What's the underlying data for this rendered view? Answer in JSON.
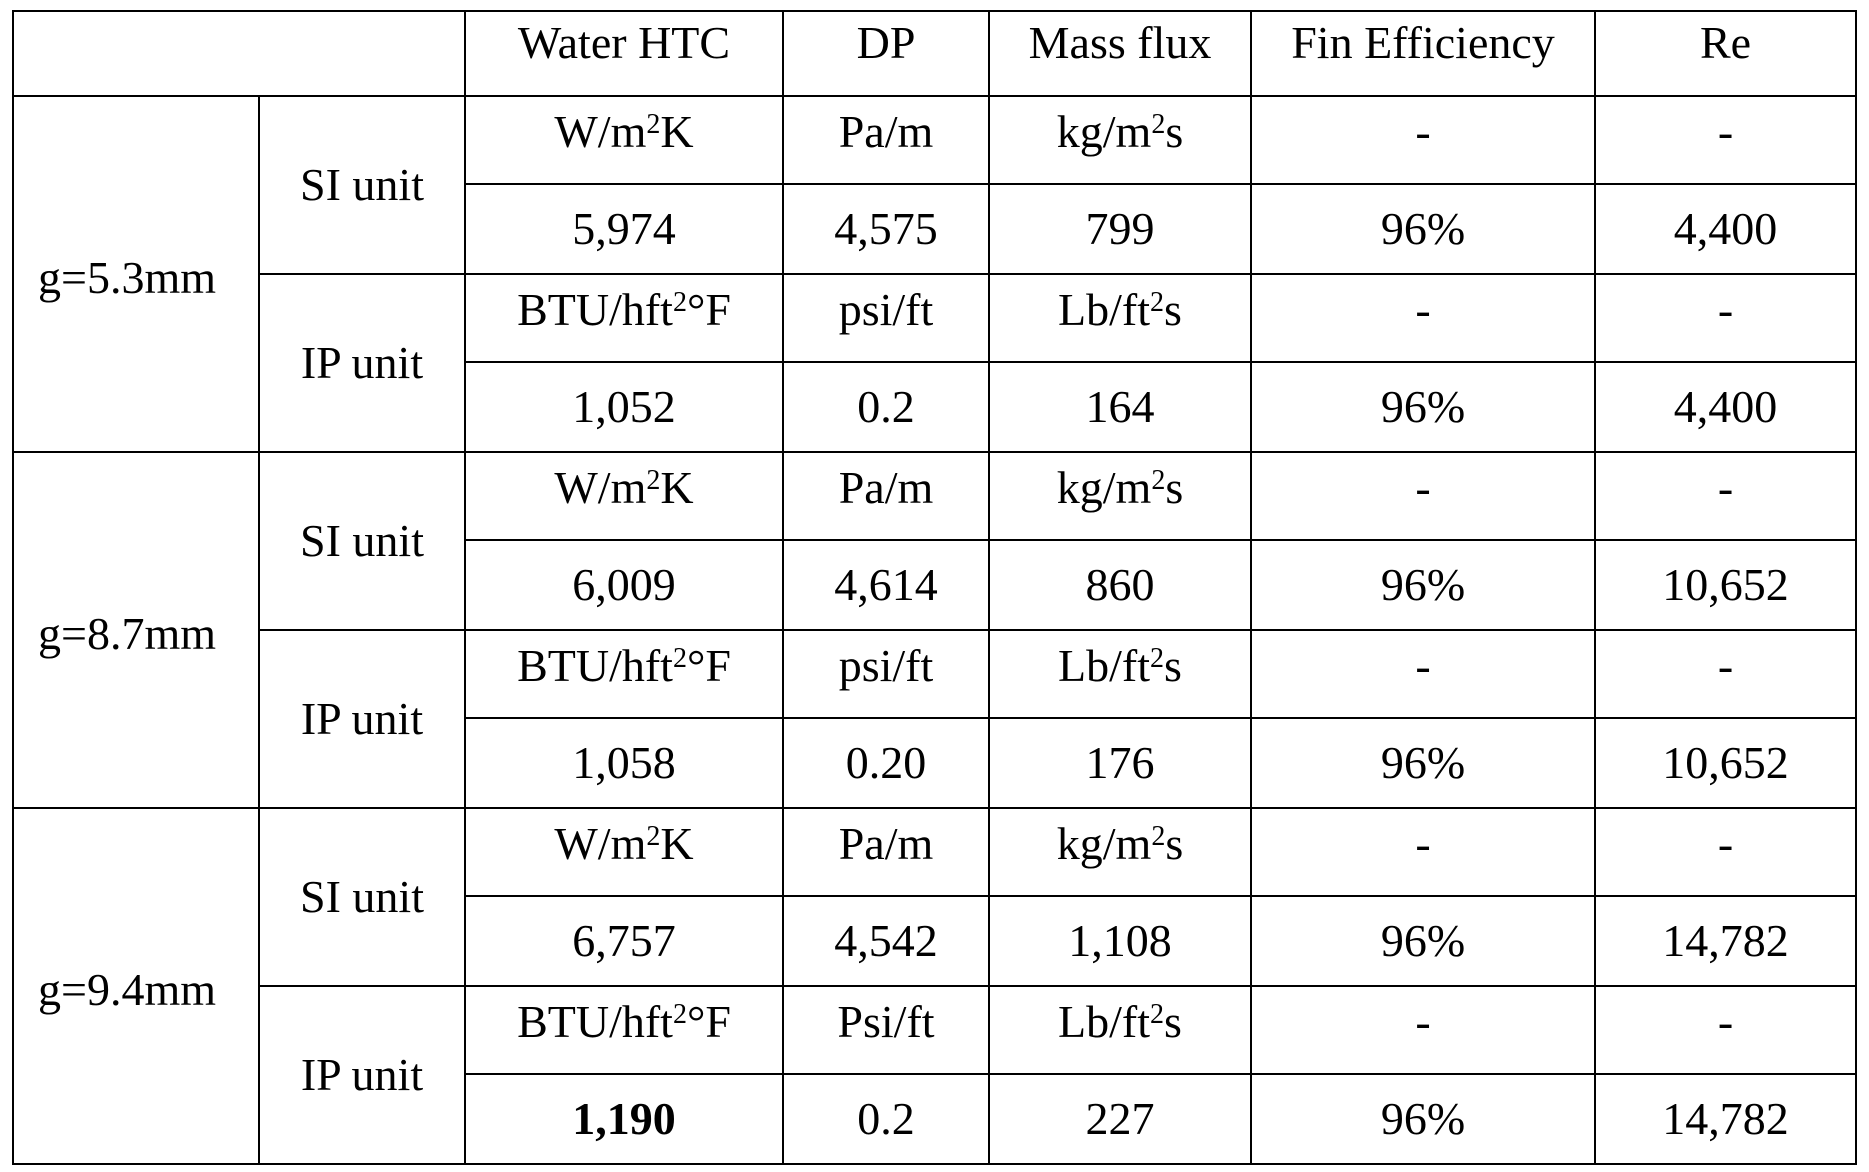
{
  "header": {
    "corner": "",
    "columns": [
      "Water HTC",
      "DP",
      "Mass flux",
      "Fin Efficiency",
      "Re"
    ]
  },
  "groups": [
    {
      "gap": "g=5.3mm",
      "si": {
        "label": "SI unit",
        "units": {
          "htc_pre": "W/m",
          "htc_sup": "2",
          "htc_post": "K",
          "dp": "Pa/m",
          "mf_pre": "kg/m",
          "mf_sup": "2",
          "mf_post": "s",
          "fin": "-",
          "re": "-"
        },
        "values": {
          "htc": "5,974",
          "dp": "4,575",
          "mf": "799",
          "fin": "96%",
          "re": "4,400"
        }
      },
      "ip": {
        "label": "IP unit",
        "units": {
          "htc_pre": "BTU/hft",
          "htc_sup": "2",
          "htc_post": "°F",
          "dp": "psi/ft",
          "mf_pre": "Lb/ft",
          "mf_sup": "2",
          "mf_post": "s",
          "fin": "-",
          "re": "-"
        },
        "values": {
          "htc": "1,052",
          "dp": "0.2",
          "mf": "164",
          "fin": "96%",
          "re": "4,400"
        }
      }
    },
    {
      "gap": "g=8.7mm",
      "si": {
        "label": "SI unit",
        "units": {
          "htc_pre": "W/m",
          "htc_sup": "2",
          "htc_post": "K",
          "dp": "Pa/m",
          "mf_pre": "kg/m",
          "mf_sup": "2",
          "mf_post": "s",
          "fin": "-",
          "re": "-"
        },
        "values": {
          "htc": "6,009",
          "dp": "4,614",
          "mf": "860",
          "fin": "96%",
          "re": "10,652"
        }
      },
      "ip": {
        "label": "IP unit",
        "units": {
          "htc_pre": "BTU/hft",
          "htc_sup": "2",
          "htc_post": "°F",
          "dp": "psi/ft",
          "mf_pre": "Lb/ft",
          "mf_sup": "2",
          "mf_post": "s",
          "fin": "-",
          "re": "-"
        },
        "values": {
          "htc": "1,058",
          "dp": "0.20",
          "mf": "176",
          "fin": "96%",
          "re": "10,652"
        }
      }
    },
    {
      "gap": "g=9.4mm",
      "si": {
        "label": "SI unit",
        "units": {
          "htc_pre": "W/m",
          "htc_sup": "2",
          "htc_post": "K",
          "dp": "Pa/m",
          "mf_pre": "kg/m",
          "mf_sup": "2",
          "mf_post": "s",
          "fin": "-",
          "re": "-"
        },
        "values": {
          "htc": "6,757",
          "dp": "4,542",
          "mf": "1,108",
          "fin": "96%",
          "re": "14,782"
        }
      },
      "ip": {
        "label": "IP unit",
        "units": {
          "htc_pre": "BTU/hft",
          "htc_sup": "2",
          "htc_post": "°F",
          "dp": "Psi/ft",
          "mf_pre": "Lb/ft",
          "mf_sup": "2",
          "mf_post": "s",
          "fin": "-",
          "re": "-"
        },
        "values": {
          "htc": "1,190",
          "dp": "0.2",
          "mf": "227",
          "fin": "96%",
          "re": "14,782"
        }
      }
    }
  ]
}
